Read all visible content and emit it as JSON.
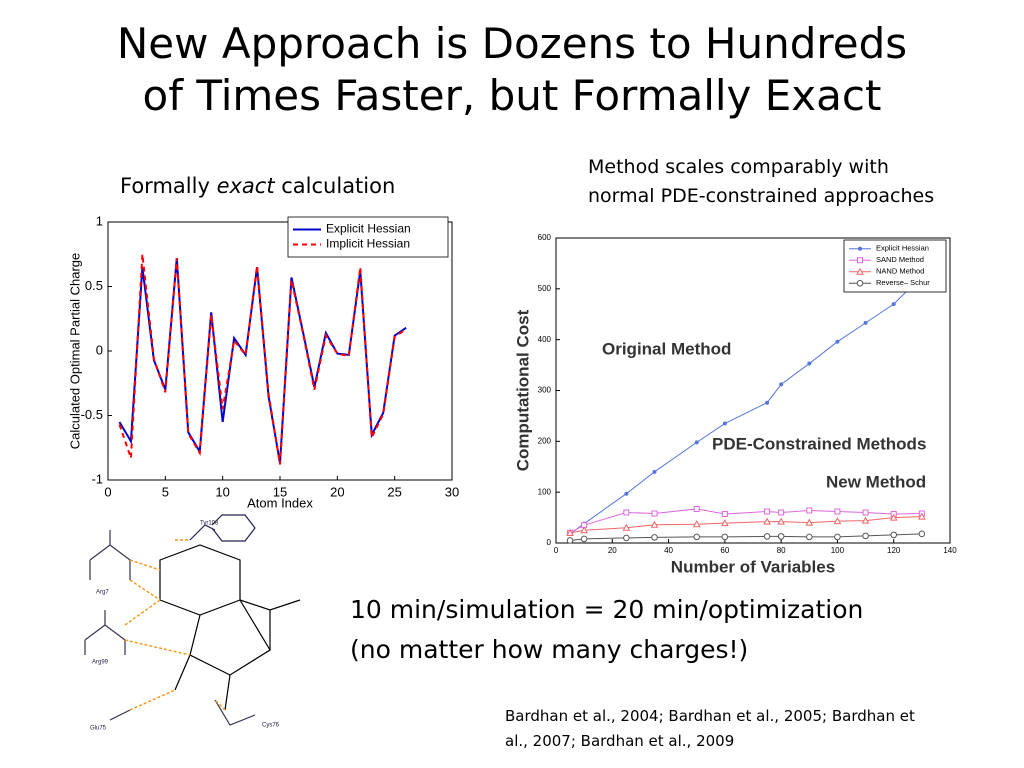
{
  "title": [
    "New Approach is Dozens to Hundreds",
    "of Times Faster, but Formally Exact"
  ],
  "left_caption": {
    "before": "Formally",
    "emphasis": "exact",
    "after": "calculation"
  },
  "right_caption": [
    "Method scales comparably with",
    "normal PDE-constrained approaches"
  ],
  "result": [
    "10 min/simulation = 20 min/optimization",
    "(no matter how many charges!)"
  ],
  "citation": [
    "Bardhan et al., 2004; Bardhan et al., 2005; Bardhan et",
    "al., 2007; Bardhan et al., 2009"
  ],
  "diagram": {
    "residues": [
      "Tyr108",
      "Arg7",
      "Arg99",
      "Glu75",
      "Cys76"
    ]
  },
  "chart_data": [
    {
      "type": "line",
      "x_label": "Atom Index",
      "y_label": "Calculated Optimal Partial Charge",
      "x": [
        1,
        2,
        3,
        4,
        5,
        6,
        7,
        8,
        9,
        10,
        11,
        12,
        13,
        14,
        15,
        16,
        17,
        18,
        19,
        20,
        21,
        22,
        23,
        24,
        25,
        26
      ],
      "series": [
        {
          "name": "Explicit Hessian",
          "color": "#0000cc",
          "dash": false,
          "values": [
            -0.55,
            -0.7,
            0.65,
            -0.07,
            -0.3,
            0.72,
            -0.63,
            -0.78,
            0.3,
            -0.55,
            0.1,
            -0.03,
            0.65,
            -0.35,
            -0.87,
            0.57,
            0.15,
            -0.28,
            0.14,
            -0.02,
            -0.03,
            0.62,
            -0.65,
            -0.48,
            0.12,
            0.18
          ]
        },
        {
          "name": "Implicit Hessian",
          "color": "#ff0000",
          "dash": true,
          "values": [
            -0.57,
            -0.83,
            0.75,
            -0.06,
            -0.32,
            0.72,
            -0.64,
            -0.79,
            0.28,
            -0.45,
            0.08,
            -0.03,
            0.66,
            -0.33,
            -0.88,
            0.55,
            0.14,
            -0.3,
            0.12,
            -0.02,
            -0.04,
            0.65,
            -0.67,
            -0.49,
            0.11,
            0.17
          ]
        }
      ],
      "xlim": [
        0,
        30
      ],
      "xticks": [
        0,
        5,
        10,
        15,
        20,
        25,
        30
      ],
      "ylim": [
        -1,
        1
      ],
      "yticks": [
        -1,
        -0.5,
        0,
        0.5,
        1
      ],
      "grid": false,
      "legend": "upper right"
    },
    {
      "type": "line",
      "x_label": "Number of Variables",
      "y_label": "Computational Cost",
      "x": [
        5,
        10,
        25,
        35,
        50,
        60,
        75,
        80,
        90,
        100,
        110,
        120,
        130
      ],
      "series": [
        {
          "name": "Explicit Hessian",
          "color": "#5577dd",
          "marker": "dot",
          "values": [
            18,
            38,
            97,
            140,
            198,
            235,
            276,
            312,
            353,
            396,
            433,
            470,
            525
          ]
        },
        {
          "name": "SAND Method",
          "color": "#dd66dd",
          "marker": "square",
          "values": [
            20,
            35,
            60,
            58,
            67,
            57,
            62,
            60,
            64,
            62,
            60,
            57,
            58
          ]
        },
        {
          "name": "NAND Method",
          "color": "#ee6666",
          "marker": "triangle",
          "values": [
            20,
            25,
            30,
            36,
            37,
            39,
            42,
            42,
            40,
            43,
            44,
            50,
            52
          ]
        },
        {
          "name": "Reverse– Schur",
          "color": "#555555",
          "marker": "circle",
          "values": [
            5,
            8,
            10,
            11,
            12,
            12,
            13,
            13,
            12,
            12,
            14,
            16,
            18
          ]
        }
      ],
      "annotations": [
        "Original Method",
        "PDE-Constrained Methods",
        "New Method"
      ],
      "xlim": [
        0,
        140
      ],
      "xticks": [
        0,
        20,
        40,
        60,
        80,
        100,
        120,
        140
      ],
      "ylim": [
        0,
        600
      ],
      "yticks": [
        0,
        100,
        200,
        300,
        400,
        500,
        600
      ],
      "grid": false,
      "legend": "upper right"
    }
  ]
}
